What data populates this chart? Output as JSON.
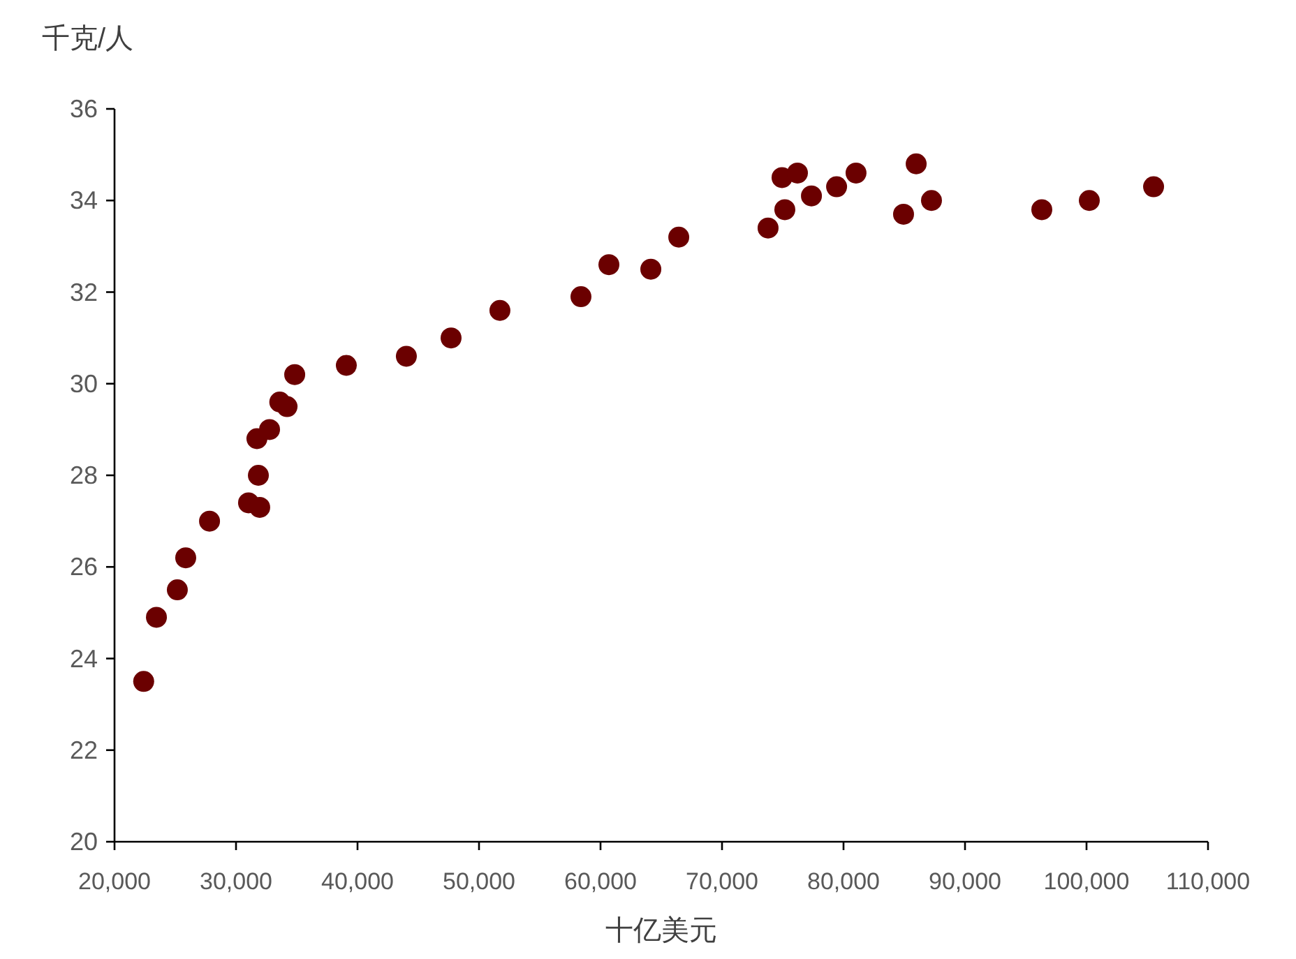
{
  "chart_data": {
    "type": "scatter",
    "xlabel": "十亿美元",
    "ylabel": "千克/人",
    "xlim": [
      20000,
      110000
    ],
    "xticks": [
      {
        "value": 20000,
        "label": "20,000"
      },
      {
        "value": 30000,
        "label": "30,000"
      },
      {
        "value": 40000,
        "label": "40,000"
      },
      {
        "value": 50000,
        "label": "50,000"
      },
      {
        "value": 60000,
        "label": "60,000"
      },
      {
        "value": 70000,
        "label": "70,000"
      },
      {
        "value": 80000,
        "label": "80,000"
      },
      {
        "value": 90000,
        "label": "90,000"
      },
      {
        "value": 100000,
        "label": "100,000"
      },
      {
        "value": 110000,
        "label": "110,000"
      }
    ],
    "ylim": [
      20,
      36
    ],
    "yticks": [
      20,
      22,
      24,
      26,
      28,
      30,
      32,
      34,
      36
    ],
    "marker": "circle",
    "grid": false,
    "series": [
      {
        "color": "#6b0000",
        "x": [
          22400,
          23450,
          25170,
          25860,
          27820,
          31030,
          31950,
          31840,
          31720,
          32760,
          33600,
          34200,
          34830,
          39080,
          44020,
          47700,
          51720,
          58390,
          60690,
          64140,
          66440,
          73790,
          74940,
          75170,
          76210,
          77360,
          79430,
          81030,
          84940,
          85980,
          87240,
          96320,
          100230,
          105520
        ],
        "values": [
          23.5,
          24.9,
          25.5,
          26.2,
          27.0,
          27.4,
          27.3,
          28.0,
          28.8,
          29.0,
          29.6,
          29.5,
          30.2,
          30.4,
          30.6,
          31.0,
          31.6,
          31.9,
          32.6,
          32.5,
          33.2,
          33.4,
          34.5,
          33.8,
          34.6,
          34.1,
          34.3,
          34.6,
          33.7,
          34.8,
          34.0,
          33.8,
          34.0,
          34.3
        ]
      }
    ]
  }
}
